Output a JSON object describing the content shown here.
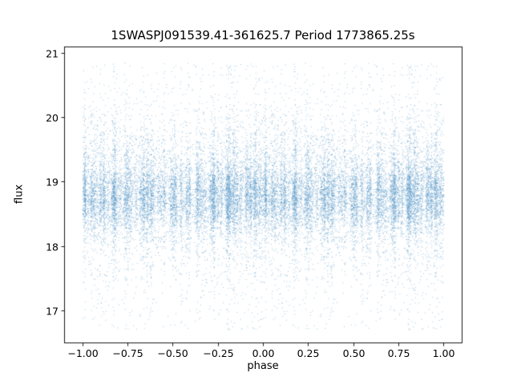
{
  "chart_data": {
    "type": "scatter",
    "title": "1SWASPJ091539.41-361625.7 Period 1773865.25s",
    "xlabel": "phase",
    "ylabel": "flux",
    "xlim": [
      -1.1,
      1.1
    ],
    "ylim": [
      16.5,
      21.1
    ],
    "x_tick_values": [
      -1.0,
      -0.75,
      -0.5,
      -0.25,
      0.0,
      0.25,
      0.5,
      0.75,
      1.0
    ],
    "x_tick_labels": [
      "−1.00",
      "−0.75",
      "−0.50",
      "−0.25",
      "0.00",
      "0.25",
      "0.50",
      "0.75",
      "1.00"
    ],
    "y_tick_values": [
      17,
      18,
      19,
      20,
      21
    ],
    "y_tick_labels": [
      "17",
      "18",
      "19",
      "20",
      "21"
    ],
    "grid": false,
    "legend": "none",
    "marker_color": "#4a90c4",
    "marker_alpha": 0.5,
    "points_spec": {
      "description": "phase-folded light curve, duplicated over phase -1..0 and 0..1",
      "seed": 20240915,
      "n_base_points": 12000,
      "mirror_offset": -1,
      "x_range": [
        0,
        1
      ],
      "n_epoch_clusters": 110,
      "cluster_fraction": 0.75,
      "cluster_sd": 0.005,
      "flux_components": [
        {
          "w": 0.55,
          "type": "gauss",
          "mean": 18.75,
          "sd": 0.28
        },
        {
          "w": 0.25,
          "type": "gauss",
          "mean": 19.15,
          "sd": 0.5
        },
        {
          "w": 0.12,
          "type": "gauss",
          "mean": 18.3,
          "sd": 0.5
        },
        {
          "w": 0.08,
          "type": "uniform",
          "lo": 16.7,
          "hi": 20.85
        }
      ],
      "flux_clip": [
        16.62,
        20.88
      ]
    }
  }
}
